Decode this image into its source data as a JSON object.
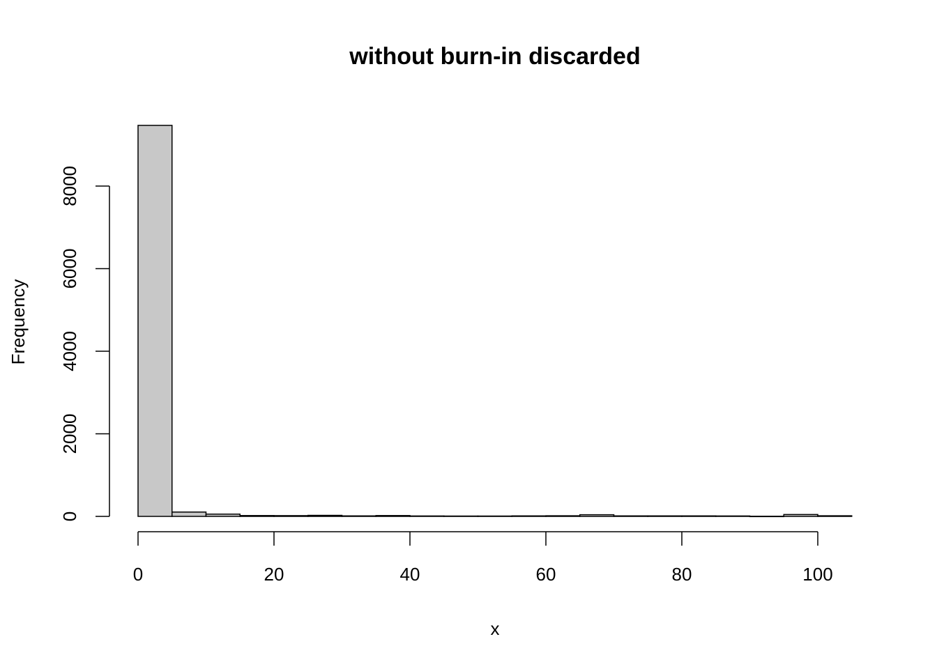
{
  "chart_data": {
    "type": "bar",
    "title": "without burn-in discarded",
    "xlabel": "x",
    "ylabel": "Frequency",
    "bin_edges": [
      0,
      5,
      10,
      15,
      20,
      25,
      30,
      35,
      40,
      45,
      50,
      55,
      60,
      65,
      70,
      75,
      80,
      85,
      90,
      95,
      100,
      105
    ],
    "values": [
      9470,
      105,
      55,
      20,
      18,
      25,
      12,
      20,
      10,
      8,
      8,
      12,
      15,
      40,
      12,
      12,
      12,
      10,
      3,
      45,
      15
    ],
    "xlim": [
      0,
      105
    ],
    "ylim": [
      0,
      9470
    ],
    "x_ticks": [
      0,
      20,
      40,
      60,
      80,
      100
    ],
    "y_ticks": [
      0,
      2000,
      4000,
      6000,
      8000
    ],
    "bar_color": "#c8c8c8",
    "grid": false
  }
}
